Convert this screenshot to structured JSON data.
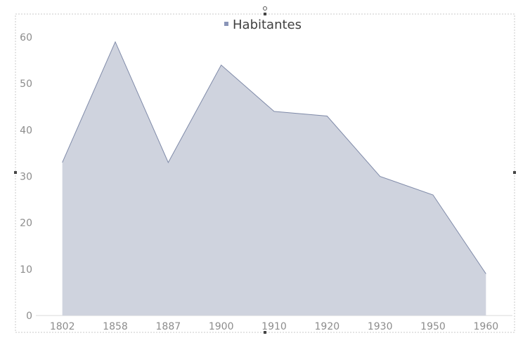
{
  "chart_data": {
    "type": "area",
    "categories": [
      "1802",
      "1858",
      "1887",
      "1900",
      "1910",
      "1920",
      "1930",
      "1950",
      "1960"
    ],
    "series": [
      {
        "name": "Habitantes",
        "values": [
          33,
          59,
          33,
          54,
          44,
          43,
          30,
          26,
          9
        ]
      }
    ],
    "y_ticks": [
      "0",
      "10",
      "20",
      "30",
      "40",
      "50",
      "60"
    ],
    "ylim": [
      0,
      65
    ],
    "grid": false,
    "legend": "top-center",
    "colors": {
      "fill": "#cfd3de",
      "stroke": "#7f8aa8",
      "legend_marker": "#8a95b8"
    }
  }
}
